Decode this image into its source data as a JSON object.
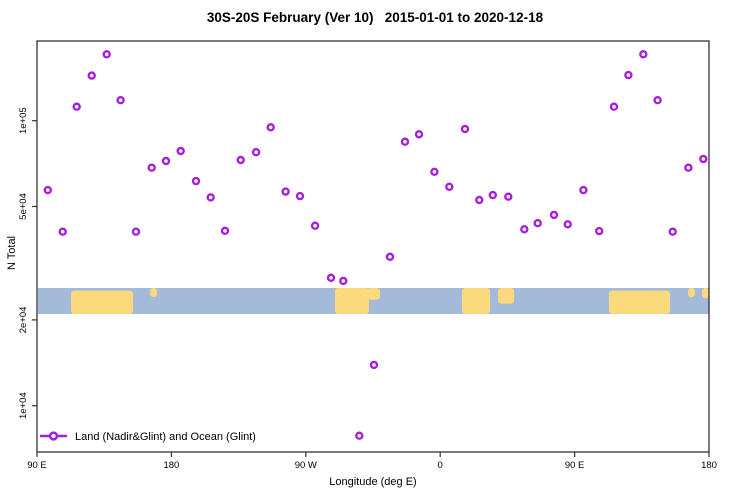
{
  "figure": {
    "title": "30S-20S February (Ver 10)   2015-01-01 to 2020-12-18",
    "xlabel": "Longitude (deg E)",
    "ylabel": "N Total",
    "legend_label": "Land (Nadir&Glint) and Ocean (Glint)"
  },
  "colors": {
    "marker": "#A41EDC",
    "ocean": "#A3BAD9",
    "land": "#FDD97E",
    "axis": "#333333",
    "text": "#000000"
  },
  "chart_data": {
    "type": "scatter",
    "title": "30S-20S February (Ver 10)   2015-01-01 to 2020-12-18",
    "xlabel": "Longitude (deg E)",
    "ylabel": "N Total",
    "y_scale": "log",
    "x_axis_note": "axis spans 450 longitude degrees starting at 90E and wrapping east: 90E,180,90W,0,90E,180",
    "xlim_deg": [
      0,
      450
    ],
    "ylim": [
      6900,
      190000
    ],
    "grid": false,
    "legend_position": "bottom-left",
    "x_ticks": [
      {
        "pos": 0,
        "label": "90 E"
      },
      {
        "pos": 90,
        "label": "180"
      },
      {
        "pos": 180,
        "label": "90 W"
      },
      {
        "pos": 270,
        "label": "0"
      },
      {
        "pos": 360,
        "label": "90 E"
      },
      {
        "pos": 450,
        "label": "180"
      }
    ],
    "y_ticks": [
      {
        "value": 100000,
        "label": "1e+05"
      },
      {
        "value": 50000,
        "label": "5e+04"
      },
      {
        "value": 20000,
        "label": "2e+04"
      },
      {
        "value": 10000,
        "label": "1e+04"
      }
    ],
    "series": [
      {
        "name": "Land (Nadir&Glint) and Ocean (Glint)",
        "marker": "open-circle",
        "color": "#A41EDC",
        "points": [
          {
            "lon_axis_deg": 46.7,
            "n_total": 171000
          },
          {
            "lon_axis_deg": 36.6,
            "n_total": 144000
          },
          {
            "lon_axis_deg": 26.6,
            "n_total": 112000
          },
          {
            "lon_axis_deg": 56.0,
            "n_total": 118000
          },
          {
            "lon_axis_deg": 96.2,
            "n_total": 78300
          },
          {
            "lon_axis_deg": 86.4,
            "n_total": 72200
          },
          {
            "lon_axis_deg": 76.8,
            "n_total": 68400
          },
          {
            "lon_axis_deg": 136.4,
            "n_total": 72800
          },
          {
            "lon_axis_deg": 146.7,
            "n_total": 77500
          },
          {
            "lon_axis_deg": 106.5,
            "n_total": 61400
          },
          {
            "lon_axis_deg": 116.3,
            "n_total": 53800
          },
          {
            "lon_axis_deg": 7.2,
            "n_total": 57100
          },
          {
            "lon_axis_deg": 17.2,
            "n_total": 40800
          },
          {
            "lon_axis_deg": 66.3,
            "n_total": 40800
          },
          {
            "lon_axis_deg": 125.9,
            "n_total": 41100
          },
          {
            "lon_axis_deg": 156.5,
            "n_total": 94800
          },
          {
            "lon_axis_deg": 166.5,
            "n_total": 56400
          },
          {
            "lon_axis_deg": 176.1,
            "n_total": 54400
          },
          {
            "lon_axis_deg": 186.2,
            "n_total": 42800
          },
          {
            "lon_axis_deg": 196.9,
            "n_total": 28100
          },
          {
            "lon_axis_deg": 205.1,
            "n_total": 27400
          },
          {
            "lon_axis_deg": 215.8,
            "n_total": 7850
          },
          {
            "lon_axis_deg": 225.7,
            "n_total": 13900
          },
          {
            "lon_axis_deg": 236.4,
            "n_total": 33300
          },
          {
            "lon_axis_deg": 246.4,
            "n_total": 84400
          },
          {
            "lon_axis_deg": 255.8,
            "n_total": 89600
          },
          {
            "lon_axis_deg": 266.1,
            "n_total": 66200
          },
          {
            "lon_axis_deg": 276.1,
            "n_total": 58600
          },
          {
            "lon_axis_deg": 286.6,
            "n_total": 93500
          },
          {
            "lon_axis_deg": 296.2,
            "n_total": 52700
          },
          {
            "lon_axis_deg": 305.2,
            "n_total": 54800
          },
          {
            "lon_axis_deg": 315.6,
            "n_total": 54100
          },
          {
            "lon_axis_deg": 326.3,
            "n_total": 41600
          },
          {
            "lon_axis_deg": 335.3,
            "n_total": 43700
          },
          {
            "lon_axis_deg": 346.2,
            "n_total": 46700
          },
          {
            "lon_axis_deg": 355.4,
            "n_total": 43300
          },
          {
            "lon_axis_deg": 365.9,
            "n_total": 57100
          },
          {
            "lon_axis_deg": 376.5,
            "n_total": 41000
          },
          {
            "lon_axis_deg": 386.4,
            "n_total": 112000
          },
          {
            "lon_axis_deg": 396.0,
            "n_total": 144500
          },
          {
            "lon_axis_deg": 406.0,
            "n_total": 171000
          },
          {
            "lon_axis_deg": 415.6,
            "n_total": 118000
          },
          {
            "lon_axis_deg": 425.7,
            "n_total": 40800
          },
          {
            "lon_axis_deg": 436.2,
            "n_total": 68400
          },
          {
            "lon_axis_deg": 446.2,
            "n_total": 73400
          }
        ]
      }
    ],
    "map_band": {
      "description": "world map strip for latitude band 30S-20S",
      "value_top": 25500,
      "value_bottom": 20600,
      "ocean_color": "#A3BAD9",
      "land_color": "#FDD97E",
      "land_segments": [
        {
          "name": "australia",
          "d1": 22.8,
          "d2": 64.3,
          "top": 0.1,
          "bottom": 1.0
        },
        {
          "name": "new-caledonia",
          "d1": 75.7,
          "d2": 80.4,
          "top": 0.0,
          "bottom": 0.35
        },
        {
          "name": "south-america",
          "d1": 199.5,
          "d2": 222.3,
          "top": 0.0,
          "bottom": 1.0
        },
        {
          "name": "south-america-e",
          "d1": 221.0,
          "d2": 229.7,
          "top": 0.0,
          "bottom": 0.45
        },
        {
          "name": "africa",
          "d1": 284.6,
          "d2": 303.4,
          "top": 0.0,
          "bottom": 1.0
        },
        {
          "name": "madagascar",
          "d1": 308.7,
          "d2": 319.5,
          "top": 0.0,
          "bottom": 0.6
        },
        {
          "name": "australia-2",
          "d1": 383.0,
          "d2": 423.9,
          "top": 0.1,
          "bottom": 1.0
        },
        {
          "name": "new-caledonia-2",
          "d1": 435.9,
          "d2": 440.6,
          "top": 0.0,
          "bottom": 0.35
        },
        {
          "name": "fiji",
          "d1": 445.3,
          "d2": 450.0,
          "top": 0.0,
          "bottom": 0.4
        }
      ]
    }
  }
}
